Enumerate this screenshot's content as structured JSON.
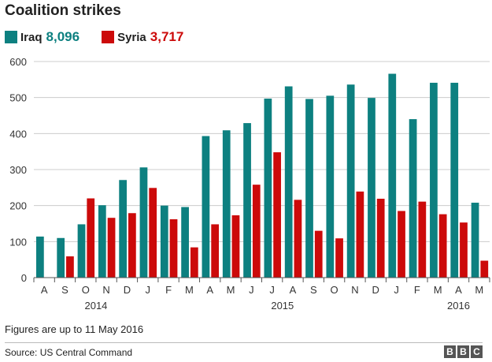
{
  "title": "Coalition strikes",
  "legend": [
    {
      "name": "Iraq",
      "total": "8,096",
      "color": "#0d8080"
    },
    {
      "name": "Syria",
      "total": "3,717",
      "color": "#cc0a0a"
    }
  ],
  "note": "Figures are up to 11 May 2016",
  "source": "Source: US Central Command",
  "logo": [
    "B",
    "B",
    "C"
  ],
  "chart_data": {
    "type": "bar",
    "title": "Coalition strikes",
    "xlabel": "",
    "ylabel": "",
    "ylim": [
      0,
      600
    ],
    "yticks": [
      0,
      100,
      200,
      300,
      400,
      500,
      600
    ],
    "grid": true,
    "legend_position": "top-left",
    "categories": [
      "A",
      "S",
      "O",
      "N",
      "D",
      "J",
      "F",
      "M",
      "A",
      "M",
      "J",
      "J",
      "A",
      "S",
      "O",
      "N",
      "D",
      "J",
      "F",
      "M",
      "A",
      "M"
    ],
    "year_labels": [
      {
        "label": "2014",
        "category_index": 2.5
      },
      {
        "label": "2015",
        "category_index": 11.5
      },
      {
        "label": "2016",
        "category_index": 20
      }
    ],
    "series": [
      {
        "name": "Iraq",
        "color": "#0d8080",
        "values": [
          114,
          110,
          148,
          201,
          271,
          306,
          200,
          196,
          393,
          409,
          429,
          497,
          531,
          496,
          505,
          536,
          499,
          566,
          440,
          541,
          541,
          208
        ]
      },
      {
        "name": "Syria",
        "color": "#cc0a0a",
        "values": [
          0,
          59,
          220,
          166,
          179,
          249,
          162,
          84,
          148,
          173,
          258,
          348,
          216,
          130,
          109,
          239,
          219,
          185,
          211,
          176,
          153,
          47
        ]
      }
    ]
  }
}
